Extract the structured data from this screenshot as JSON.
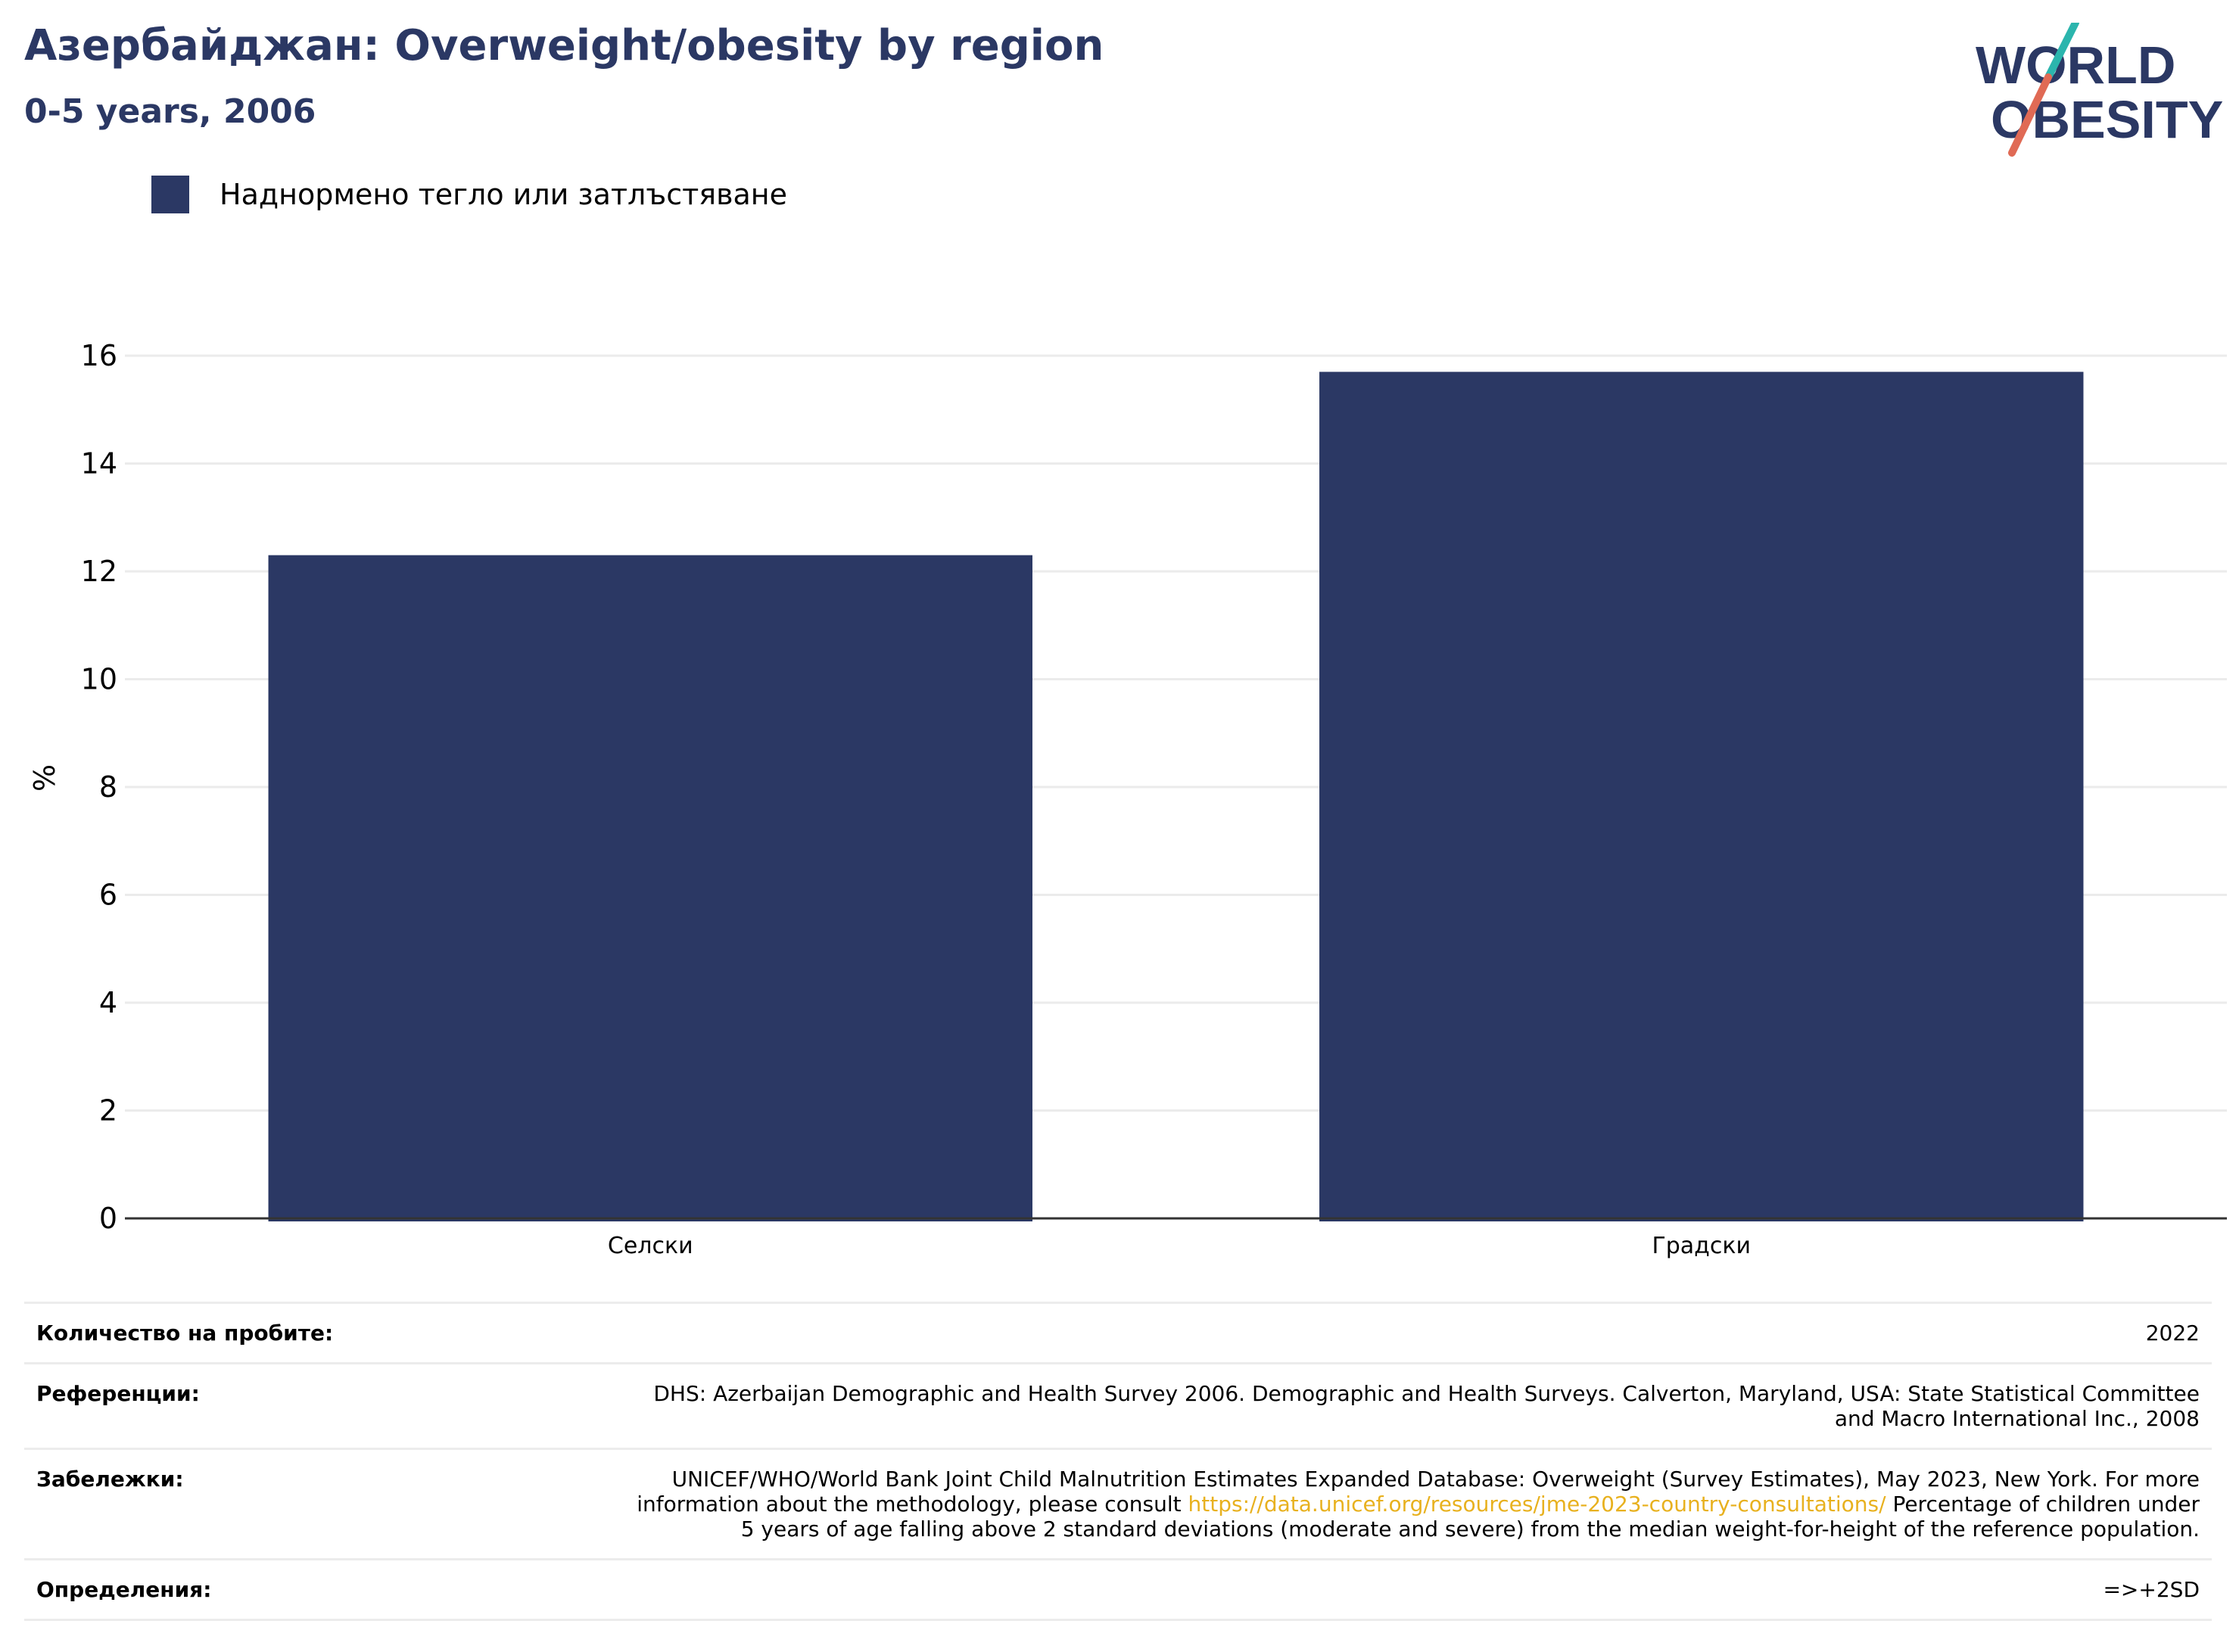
{
  "header": {
    "title": "Азербайджан: Overweight/obesity by region",
    "subtitle": "0-5 years, 2006"
  },
  "logo": {
    "line1": "WORLD",
    "line2": "OBESITY"
  },
  "colors": {
    "bar": "#2b3864",
    "title": "#2b3864",
    "grid": "#ebebeb",
    "link": "#e8b11f",
    "logo_teal": "#2bb5ad",
    "logo_red": "#e06a55"
  },
  "chart_data": {
    "type": "bar",
    "categories": [
      "Селски",
      "Градски"
    ],
    "series": [
      {
        "name": "Наднормено тегло или затлъстяване",
        "values": [
          12.3,
          15.7
        ]
      }
    ],
    "title": "Азербайджан: Overweight/obesity by region",
    "subtitle": "0-5 years, 2006",
    "xlabel": "",
    "ylabel": "%",
    "ylim": [
      0,
      16
    ],
    "yticks": [
      0,
      2,
      4,
      6,
      8,
      10,
      12,
      14,
      16
    ],
    "grid": true,
    "legend": "top-left"
  },
  "meta": {
    "rows": [
      {
        "key": "Количество на пробите:",
        "value": "2022"
      },
      {
        "key": "Референции:",
        "value": "DHS: Azerbaijan Demographic and Health Survey 2006. Demographic and Health Surveys. Calverton, Maryland, USA: State Statistical Committee and Macro International Inc., 2008"
      },
      {
        "key": "Забележки:",
        "value_before": "UNICEF/WHO/World Bank Joint Child Malnutrition Estimates Expanded Database: Overweight (Survey Estimates), May 2023, New York. For more information about the methodology, please consult ",
        "link": "https://data.unicef.org/resources/jme-2023-country-consultations/",
        "value_after": " Percentage of children under 5 years of age falling above 2 standard deviations (moderate and severe) from the median weight-for-height of the reference population."
      },
      {
        "key": "Определения:",
        "value": "=>+2SD"
      }
    ]
  }
}
